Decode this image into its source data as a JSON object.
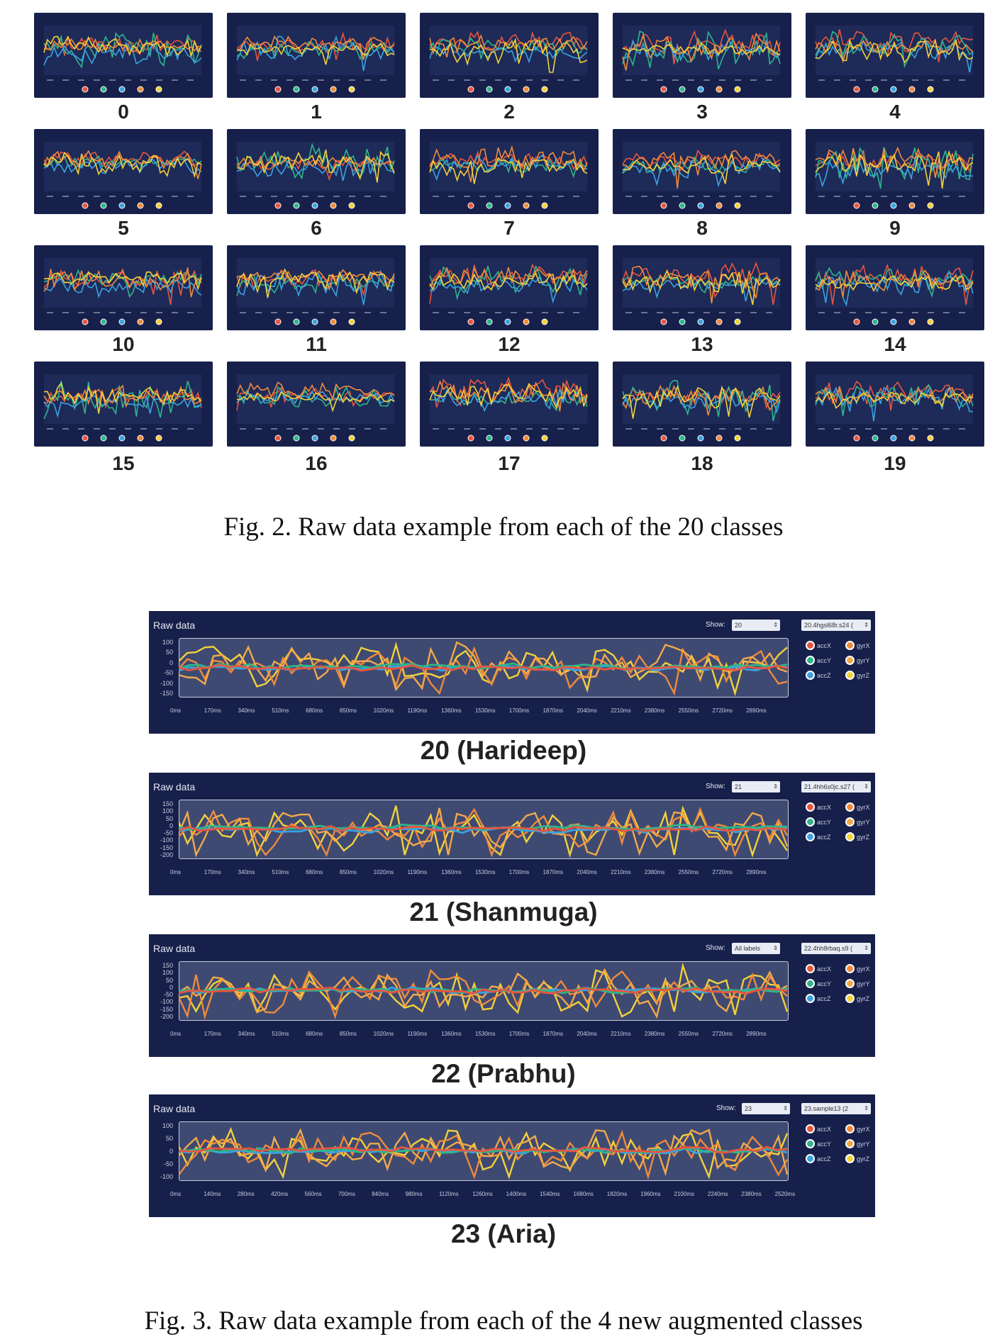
{
  "figure2": {
    "classes": [
      "0",
      "1",
      "2",
      "3",
      "4",
      "5",
      "6",
      "7",
      "8",
      "9",
      "10",
      "11",
      "12",
      "13",
      "14",
      "15",
      "16",
      "17",
      "18",
      "19"
    ],
    "caption": "Fig. 2.   Raw data example from each of the 20 classes"
  },
  "figure3": {
    "caption": "Fig. 3.   Raw data example from each of the 4 new augmented classes",
    "panels": [
      {
        "title": "Raw data",
        "show_label": "Show:",
        "show_value": "20",
        "sample": "20.4hgsl68r.s24 (",
        "y_ticks": [
          "100",
          "50",
          "0",
          "-50",
          "-100",
          "-150"
        ],
        "x_ticks": [
          "0ms",
          "170ms",
          "340ms",
          "510ms",
          "680ms",
          "850ms",
          "1020ms",
          "1190ms",
          "1360ms",
          "1530ms",
          "1700ms",
          "1870ms",
          "2040ms",
          "2210ms",
          "2380ms",
          "2550ms",
          "2720ms",
          "2890ms"
        ],
        "legend": [
          "accX",
          "gyrX",
          "accY",
          "gyrY",
          "accZ",
          "gyrZ"
        ],
        "label": "20 (Harideep)"
      },
      {
        "title": "Raw data",
        "show_label": "Show:",
        "show_value": "21",
        "sample": "21.4hh6s0jc.s27 (",
        "y_ticks": [
          "150",
          "100",
          "50",
          "0",
          "-50",
          "-100",
          "-150",
          "-200"
        ],
        "x_ticks": [
          "0ms",
          "170ms",
          "340ms",
          "510ms",
          "680ms",
          "850ms",
          "1020ms",
          "1190ms",
          "1360ms",
          "1530ms",
          "1700ms",
          "1870ms",
          "2040ms",
          "2210ms",
          "2380ms",
          "2550ms",
          "2720ms",
          "2890ms"
        ],
        "legend": [
          "accX",
          "gyrX",
          "accY",
          "gyrY",
          "accZ",
          "gyrZ"
        ],
        "label": "21 (Shanmuga)"
      },
      {
        "title": "Raw data",
        "show_label": "Show:",
        "show_value": "All labels",
        "sample": "22.4hh8rbaq.s9 (",
        "y_ticks": [
          "150",
          "100",
          "50",
          "0",
          "-50",
          "-100",
          "-150",
          "-200"
        ],
        "x_ticks": [
          "0ms",
          "170ms",
          "340ms",
          "510ms",
          "680ms",
          "850ms",
          "1020ms",
          "1190ms",
          "1360ms",
          "1530ms",
          "1700ms",
          "1870ms",
          "2040ms",
          "2210ms",
          "2380ms",
          "2550ms",
          "2720ms",
          "2890ms"
        ],
        "legend": [
          "accX",
          "gyrX",
          "accY",
          "gyrY",
          "accZ",
          "gyrZ"
        ],
        "label": "22 (Prabhu)"
      },
      {
        "title": "Raw data",
        "show_label": "Show:",
        "show_value": "23",
        "sample": "23.sample13 (2",
        "y_ticks": [
          "100",
          "50",
          "0",
          "-50",
          "-100"
        ],
        "x_ticks": [
          "0ms",
          "140ms",
          "280ms",
          "420ms",
          "560ms",
          "700ms",
          "840ms",
          "980ms",
          "1120ms",
          "1260ms",
          "1400ms",
          "1540ms",
          "1680ms",
          "1820ms",
          "1960ms",
          "2100ms",
          "2240ms",
          "2380ms",
          "2520ms"
        ],
        "legend": [
          "accX",
          "gyrX",
          "accY",
          "gyrY",
          "accZ",
          "gyrZ"
        ],
        "label": "23 (Aria)"
      }
    ],
    "legend_colors": [
      "#e8553f",
      "#f08a3c",
      "#2fb58c",
      "#f2a94a",
      "#3aa3e0",
      "#f2d13c"
    ]
  },
  "series_colors": [
    "#e8553f",
    "#2fb58c",
    "#3aa3e0",
    "#f08a3c",
    "#f2d13c"
  ]
}
